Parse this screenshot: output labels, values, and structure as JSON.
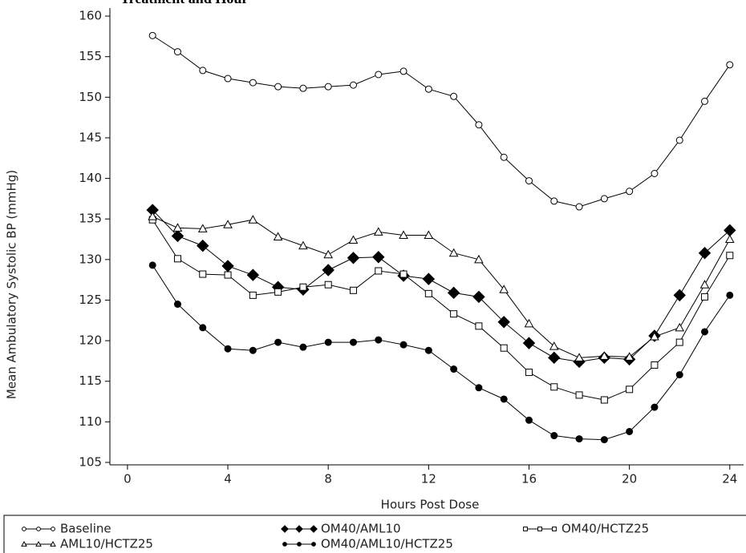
{
  "chart_data": {
    "type": "line",
    "title": "Treatment and Hour",
    "x_label": "Hours Post Dose",
    "y_label": "Mean Ambulatory Systolic BP (mmHg)",
    "x": [
      1,
      2,
      3,
      4,
      5,
      6,
      7,
      8,
      9,
      10,
      11,
      12,
      13,
      14,
      15,
      16,
      17,
      18,
      19,
      20,
      21,
      22,
      23,
      24
    ],
    "xlim": [
      -0.7,
      24.55
    ],
    "xticks": [
      0,
      4,
      8,
      12,
      16,
      20,
      24
    ],
    "ylim": [
      104.7,
      160.5
    ],
    "yticks": [
      105,
      110,
      115,
      120,
      125,
      130,
      135,
      140,
      145,
      150,
      155,
      160
    ],
    "series": [
      {
        "name": "Baseline",
        "color": "#000000",
        "marker": "open-circle",
        "values": [
          157.6,
          155.6,
          153.3,
          152.3,
          151.8,
          151.3,
          151.1,
          151.3,
          151.5,
          152.8,
          153.2,
          151.0,
          150.1,
          146.6,
          142.6,
          139.7,
          137.2,
          136.5,
          137.5,
          138.4,
          140.6,
          144.7,
          149.5,
          154.0
        ]
      },
      {
        "name": "OM40/AML10",
        "color": "#000000",
        "marker": "filled-diamond",
        "values": [
          136.1,
          132.9,
          131.7,
          129.2,
          128.1,
          126.6,
          126.3,
          128.7,
          130.2,
          130.3,
          128.0,
          127.6,
          125.9,
          125.4,
          122.3,
          119.7,
          117.9,
          117.4,
          117.9,
          117.7,
          120.6,
          125.6,
          130.8,
          133.6
        ]
      },
      {
        "name": "OM40/HCTZ25",
        "color": "#000000",
        "marker": "open-square",
        "values": [
          134.9,
          130.1,
          128.2,
          128.1,
          125.6,
          126.0,
          126.6,
          126.9,
          126.2,
          128.6,
          128.2,
          125.8,
          123.3,
          121.8,
          119.1,
          116.1,
          114.3,
          113.3,
          112.7,
          114.0,
          117.0,
          119.8,
          125.4,
          130.5
        ]
      },
      {
        "name": "AML10/HCTZ25",
        "color": "#000000",
        "marker": "open-triangle",
        "values": [
          135.3,
          133.9,
          133.8,
          134.3,
          134.9,
          132.8,
          131.7,
          130.6,
          132.4,
          133.4,
          133.0,
          133.0,
          130.8,
          130.0,
          126.3,
          122.1,
          119.3,
          117.9,
          118.1,
          118.0,
          120.5,
          121.6,
          126.9,
          132.5
        ]
      },
      {
        "name": "OM40/AML10/HCTZ25",
        "color": "#000000",
        "marker": "filled-circle",
        "values": [
          129.3,
          124.5,
          121.6,
          119.0,
          118.8,
          119.8,
          119.2,
          119.8,
          119.8,
          120.1,
          119.5,
          118.8,
          116.5,
          114.2,
          112.8,
          110.2,
          108.3,
          107.9,
          107.8,
          108.8,
          111.8,
          115.8,
          121.1,
          125.6
        ]
      }
    ]
  }
}
